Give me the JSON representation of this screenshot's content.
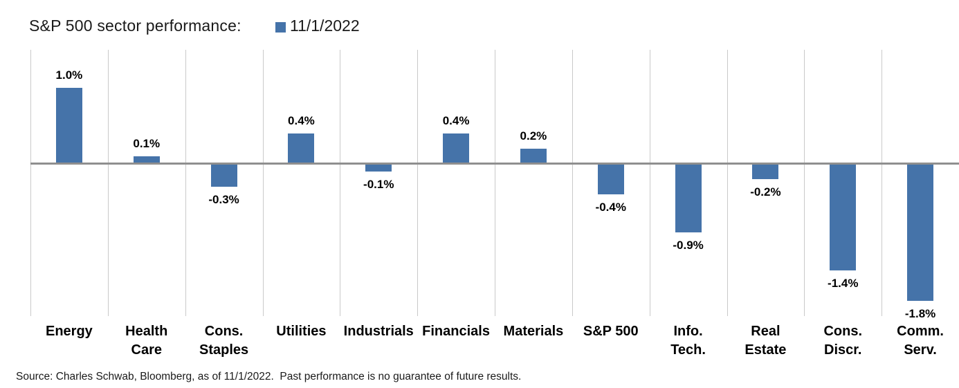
{
  "header": {
    "title": "S&P 500 sector performance:",
    "legend": {
      "label": "11/1/2022",
      "swatch_color": "#4573A9"
    }
  },
  "chart_data": {
    "type": "bar",
    "title": "S&P 500 sector performance:",
    "legend_position": "top",
    "legend_entries": [
      "11/1/2022"
    ],
    "categories": [
      "Energy",
      "Health Care",
      "Cons. Staples",
      "Utilities",
      "Industrials",
      "Financials",
      "Materials",
      "S&P 500",
      "Info. Tech.",
      "Real Estate",
      "Cons. Discr.",
      "Comm. Serv."
    ],
    "category_label_lines": [
      [
        "Energy"
      ],
      [
        "Health",
        "Care"
      ],
      [
        "Cons.",
        "Staples"
      ],
      [
        "Utilities"
      ],
      [
        "Industrials"
      ],
      [
        "Financials"
      ],
      [
        "Materials"
      ],
      [
        "S&P 500"
      ],
      [
        "Info.",
        "Tech."
      ],
      [
        "Real",
        "Estate"
      ],
      [
        "Cons.",
        "Discr."
      ],
      [
        "Comm.",
        "Serv."
      ]
    ],
    "series": [
      {
        "name": "11/1/2022",
        "color": "#4573A9",
        "values": [
          1.0,
          0.1,
          -0.3,
          0.4,
          -0.1,
          0.4,
          0.2,
          -0.4,
          -0.9,
          -0.2,
          -1.4,
          -1.8
        ]
      }
    ],
    "value_labels": [
      "1.0%",
      "0.1%",
      "-0.3%",
      "0.4%",
      "-0.1%",
      "0.4%",
      "0.2%",
      "-0.4%",
      "-0.9%",
      "-0.2%",
      "-1.4%",
      "-1.8%"
    ],
    "xlabel": "",
    "ylabel": "",
    "ylim": [
      -2.0,
      1.5
    ],
    "grid": {
      "vertical": true,
      "horizontal": false
    },
    "axis_line_color": "#8F8F8F",
    "gridline_color": "#C9C9C9",
    "bar_color": "#4573A9"
  },
  "footer": {
    "source": "Source: Charles Schwab, Bloomberg, as of 11/1/2022.  Past performance is no guarantee of future results."
  }
}
